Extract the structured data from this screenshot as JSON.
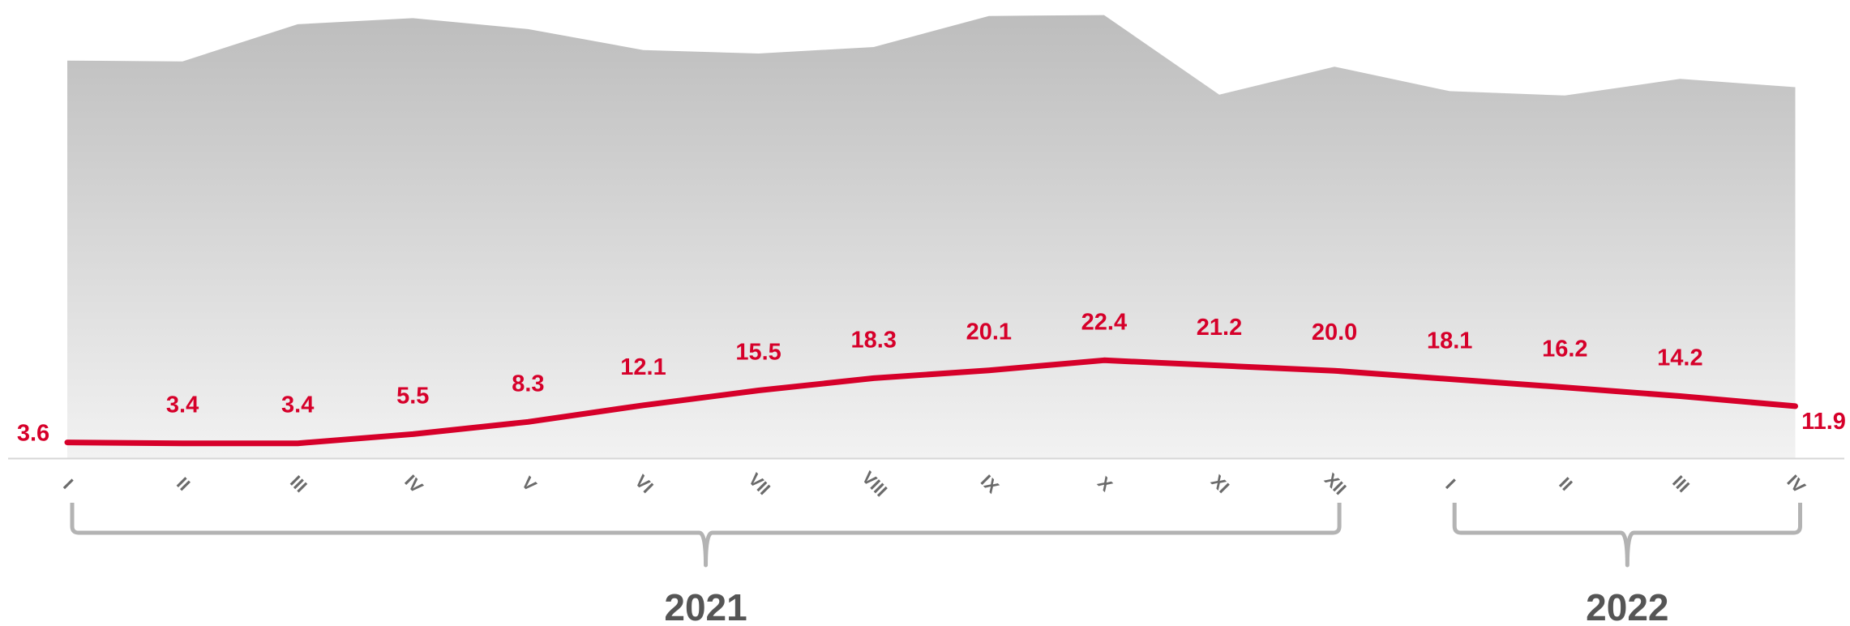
{
  "chart_data": {
    "type": "line",
    "categories": [
      "I",
      "II",
      "III",
      "IV",
      "V",
      "VI",
      "VII",
      "VIII",
      "IX",
      "X",
      "XI",
      "XII",
      "I",
      "II",
      "III",
      "IV"
    ],
    "series": [
      {
        "values": [
          3.6,
          3.4,
          3.4,
          5.5,
          8.3,
          12.1,
          15.5,
          18.3,
          20.1,
          22.4,
          21.2,
          20.0,
          18.1,
          16.2,
          14.2,
          11.9
        ],
        "labels": [
          "3.6",
          "3.4",
          "3.4",
          "5.5",
          "8.3",
          "12.1",
          "15.5",
          "18.3",
          "20.1",
          "22.4",
          "21.2",
          "20.0",
          "18.1",
          "16.2",
          "14.2",
          "11.9"
        ],
        "color": "#d6002a"
      },
      {
        "type": "area",
        "values": [
          91,
          90.8,
          99.3,
          100.7,
          98.2,
          93.4,
          92.6,
          94.1,
          101.2,
          101.4,
          83.2,
          89.6,
          84,
          83,
          86.8,
          84.9
        ],
        "color": "#bfbfbf"
      }
    ],
    "groups": [
      {
        "label": "2021",
        "start": 0,
        "end": 11
      },
      {
        "label": "2022",
        "start": 12,
        "end": 15
      }
    ],
    "ylim": [
      0,
      103
    ],
    "grid": false,
    "legend": "none"
  }
}
